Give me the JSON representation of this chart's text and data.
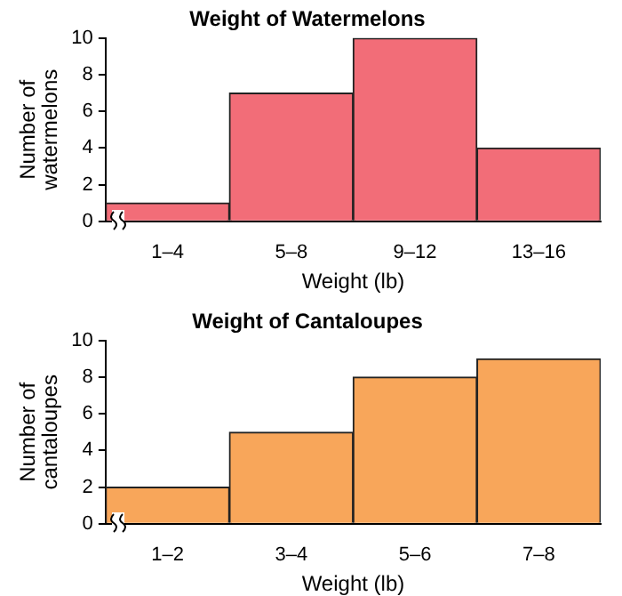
{
  "chart_data": [
    {
      "type": "bar",
      "title": "Weight of Watermelons",
      "xlabel": "Weight (lb)",
      "ylabel": "Number of watermelons",
      "categories": [
        "1–4",
        "5–8",
        "9–12",
        "13–16"
      ],
      "values": [
        1,
        7,
        10,
        4
      ],
      "color": "#f26d78",
      "ylim": [
        0,
        10
      ],
      "yticks": [
        0,
        2,
        4,
        6,
        8,
        10
      ],
      "grid": false,
      "legend": false
    },
    {
      "type": "bar",
      "title": "Weight of Cantaloupes",
      "xlabel": "Weight (lb)",
      "ylabel": "Number of cantaloupes",
      "categories": [
        "1–2",
        "3–4",
        "5–6",
        "7–8"
      ],
      "values": [
        2,
        5,
        8,
        9
      ],
      "color": "#f8a65a",
      "ylim": [
        0,
        10
      ],
      "yticks": [
        0,
        2,
        4,
        6,
        8,
        10
      ],
      "grid": false,
      "legend": false
    }
  ]
}
